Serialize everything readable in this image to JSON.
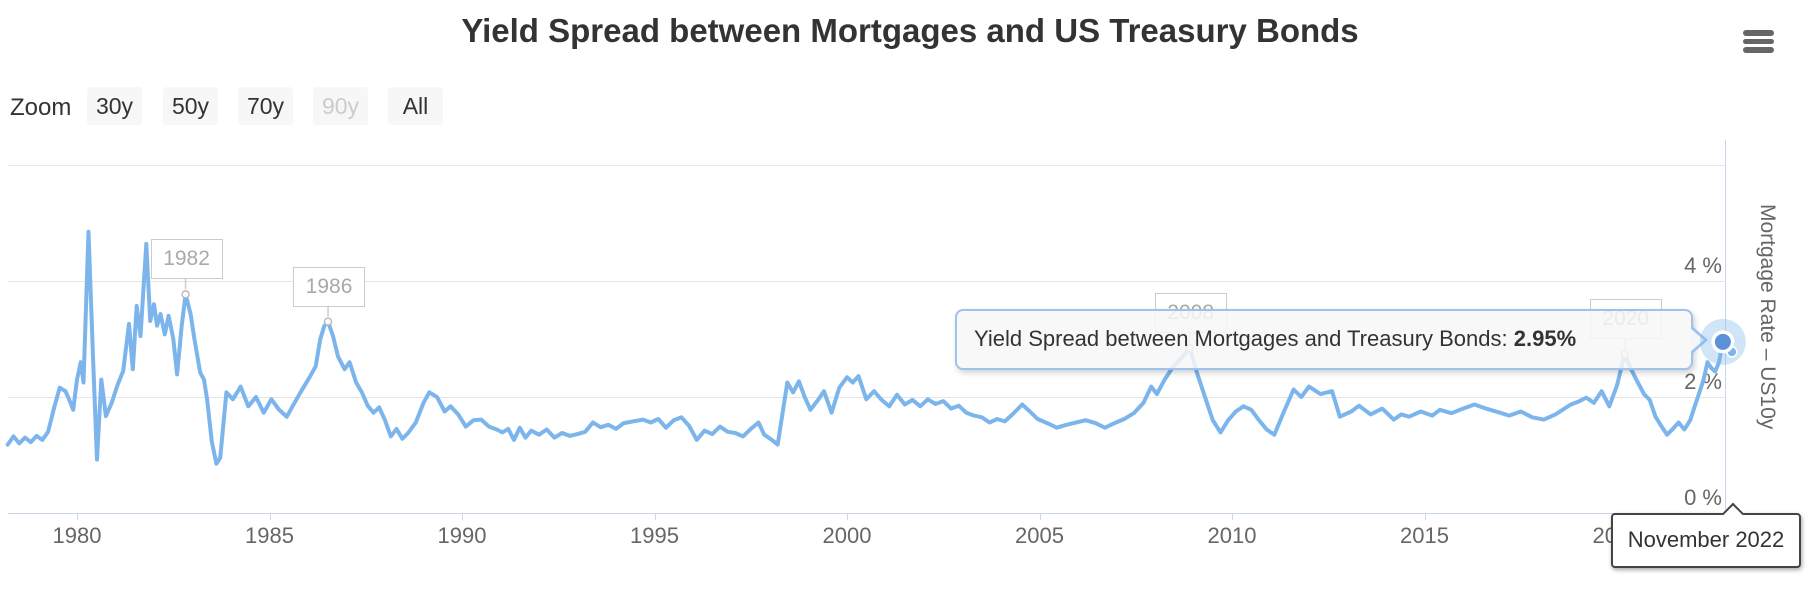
{
  "header": {
    "title": "Yield Spread between Mortgages and US Treasury Bonds"
  },
  "zoom_controls": {
    "label": "Zoom",
    "buttons": [
      {
        "label": "30y",
        "enabled": true
      },
      {
        "label": "50y",
        "enabled": true
      },
      {
        "label": "70y",
        "enabled": true
      },
      {
        "label": "90y",
        "enabled": false
      },
      {
        "label": "All",
        "enabled": true
      }
    ]
  },
  "yaxis": {
    "title": "Mortgage Rate – US10y",
    "ticks": [
      {
        "label": "4 %",
        "value": 4
      },
      {
        "label": "2 %",
        "value": 2
      },
      {
        "label": "0 %",
        "value": 0
      }
    ]
  },
  "tooltip": {
    "text": "Yield Spread between Mortgages and Treasury Bonds:",
    "value": "2.95%"
  },
  "crosshair_label": {
    "text": "November 2022"
  },
  "annotations": [
    {
      "label": "1982",
      "year": 1982.82,
      "value": 3.77
    },
    {
      "label": "1986",
      "year": 1986.52,
      "value": 3.3
    },
    {
      "label": "2008",
      "year": 2008.9,
      "value": 2.84
    },
    {
      "label": "2020",
      "year": 2020.2,
      "value": 2.74
    }
  ],
  "colors": {
    "line": "#7cb5ec",
    "marker_fill": "#5a91d8",
    "marker_halo": "rgba(124,181,236,0.35)",
    "grid": "#e6e6e6",
    "axis": "#ccd6eb",
    "flag_connector": "#cccccc"
  },
  "chart_data": {
    "type": "line",
    "series_name": "Yield Spread between Mortgages and Treasury Bonds",
    "title": "Yield Spread between Mortgages and US Treasury Bonds",
    "ylabel": "Mortgage Rate – US10y",
    "x_ticks": [
      1980,
      1985,
      1990,
      1995,
      2000,
      2005,
      2010,
      2015,
      2020
    ],
    "y_gridlines": [
      0,
      2,
      4,
      6
    ],
    "ylim": [
      0,
      6.45
    ],
    "xlim": [
      1978.2,
      2022.83
    ],
    "latest_point": {
      "date_label": "November 2022",
      "value_pct": 2.95
    },
    "points": [
      [
        1978.2,
        1.18
      ],
      [
        1978.35,
        1.32
      ],
      [
        1978.5,
        1.2
      ],
      [
        1978.65,
        1.3
      ],
      [
        1978.8,
        1.22
      ],
      [
        1978.95,
        1.33
      ],
      [
        1979.1,
        1.26
      ],
      [
        1979.25,
        1.4
      ],
      [
        1979.4,
        1.8
      ],
      [
        1979.55,
        2.16
      ],
      [
        1979.7,
        2.1
      ],
      [
        1979.8,
        1.95
      ],
      [
        1979.9,
        1.78
      ],
      [
        1980.0,
        2.3
      ],
      [
        1980.1,
        2.6
      ],
      [
        1980.17,
        2.25
      ],
      [
        1980.3,
        4.85
      ],
      [
        1980.42,
        2.6
      ],
      [
        1980.52,
        0.92
      ],
      [
        1980.63,
        2.3
      ],
      [
        1980.75,
        1.67
      ],
      [
        1980.9,
        1.9
      ],
      [
        1981.05,
        2.2
      ],
      [
        1981.2,
        2.45
      ],
      [
        1981.35,
        3.26
      ],
      [
        1981.45,
        2.48
      ],
      [
        1981.55,
        3.57
      ],
      [
        1981.65,
        3.05
      ],
      [
        1981.8,
        4.64
      ],
      [
        1981.9,
        3.31
      ],
      [
        1982.0,
        3.6
      ],
      [
        1982.08,
        3.23
      ],
      [
        1982.17,
        3.43
      ],
      [
        1982.28,
        3.08
      ],
      [
        1982.38,
        3.4
      ],
      [
        1982.5,
        3.0
      ],
      [
        1982.6,
        2.39
      ],
      [
        1982.72,
        3.23
      ],
      [
        1982.82,
        3.77
      ],
      [
        1982.95,
        3.43
      ],
      [
        1983.05,
        3.0
      ],
      [
        1983.2,
        2.42
      ],
      [
        1983.3,
        2.3
      ],
      [
        1983.38,
        1.96
      ],
      [
        1983.5,
        1.23
      ],
      [
        1983.62,
        0.85
      ],
      [
        1983.72,
        0.95
      ],
      [
        1983.88,
        2.08
      ],
      [
        1984.05,
        1.96
      ],
      [
        1984.25,
        2.18
      ],
      [
        1984.45,
        1.84
      ],
      [
        1984.65,
        2.0
      ],
      [
        1984.85,
        1.73
      ],
      [
        1985.05,
        1.96
      ],
      [
        1985.25,
        1.78
      ],
      [
        1985.45,
        1.66
      ],
      [
        1985.65,
        1.9
      ],
      [
        1985.85,
        2.13
      ],
      [
        1986.05,
        2.35
      ],
      [
        1986.2,
        2.53
      ],
      [
        1986.32,
        3.0
      ],
      [
        1986.42,
        3.22
      ],
      [
        1986.52,
        3.3
      ],
      [
        1986.65,
        3.05
      ],
      [
        1986.78,
        2.7
      ],
      [
        1986.95,
        2.48
      ],
      [
        1987.08,
        2.6
      ],
      [
        1987.25,
        2.25
      ],
      [
        1987.4,
        2.08
      ],
      [
        1987.55,
        1.85
      ],
      [
        1987.7,
        1.73
      ],
      [
        1987.85,
        1.82
      ],
      [
        1988.0,
        1.6
      ],
      [
        1988.15,
        1.32
      ],
      [
        1988.3,
        1.45
      ],
      [
        1988.45,
        1.28
      ],
      [
        1988.6,
        1.38
      ],
      [
        1988.8,
        1.56
      ],
      [
        1989.0,
        1.9
      ],
      [
        1989.15,
        2.08
      ],
      [
        1989.35,
        2.0
      ],
      [
        1989.55,
        1.75
      ],
      [
        1989.7,
        1.84
      ],
      [
        1989.9,
        1.7
      ],
      [
        1990.1,
        1.49
      ],
      [
        1990.3,
        1.6
      ],
      [
        1990.5,
        1.61
      ],
      [
        1990.7,
        1.49
      ],
      [
        1990.9,
        1.44
      ],
      [
        1991.05,
        1.39
      ],
      [
        1991.2,
        1.45
      ],
      [
        1991.35,
        1.26
      ],
      [
        1991.5,
        1.47
      ],
      [
        1991.65,
        1.3
      ],
      [
        1991.8,
        1.42
      ],
      [
        1992.0,
        1.35
      ],
      [
        1992.2,
        1.44
      ],
      [
        1992.4,
        1.3
      ],
      [
        1992.6,
        1.38
      ],
      [
        1992.8,
        1.33
      ],
      [
        1993.0,
        1.36
      ],
      [
        1993.2,
        1.4
      ],
      [
        1993.4,
        1.56
      ],
      [
        1993.6,
        1.48
      ],
      [
        1993.8,
        1.52
      ],
      [
        1994.0,
        1.45
      ],
      [
        1994.2,
        1.55
      ],
      [
        1994.45,
        1.58
      ],
      [
        1994.7,
        1.61
      ],
      [
        1994.9,
        1.56
      ],
      [
        1995.1,
        1.62
      ],
      [
        1995.3,
        1.47
      ],
      [
        1995.5,
        1.6
      ],
      [
        1995.7,
        1.65
      ],
      [
        1995.9,
        1.5
      ],
      [
        1996.1,
        1.26
      ],
      [
        1996.3,
        1.42
      ],
      [
        1996.5,
        1.36
      ],
      [
        1996.7,
        1.49
      ],
      [
        1996.9,
        1.4
      ],
      [
        1997.1,
        1.38
      ],
      [
        1997.3,
        1.32
      ],
      [
        1997.5,
        1.45
      ],
      [
        1997.7,
        1.56
      ],
      [
        1997.85,
        1.35
      ],
      [
        1998.05,
        1.26
      ],
      [
        1998.2,
        1.18
      ],
      [
        1998.45,
        2.25
      ],
      [
        1998.6,
        2.08
      ],
      [
        1998.75,
        2.27
      ],
      [
        1998.9,
        2.0
      ],
      [
        1999.05,
        1.78
      ],
      [
        1999.25,
        1.95
      ],
      [
        1999.4,
        2.1
      ],
      [
        1999.6,
        1.73
      ],
      [
        1999.8,
        2.16
      ],
      [
        2000.0,
        2.34
      ],
      [
        2000.15,
        2.25
      ],
      [
        2000.3,
        2.36
      ],
      [
        2000.5,
        1.96
      ],
      [
        2000.7,
        2.1
      ],
      [
        2000.9,
        1.95
      ],
      [
        2001.1,
        1.84
      ],
      [
        2001.3,
        2.04
      ],
      [
        2001.5,
        1.87
      ],
      [
        2001.7,
        1.95
      ],
      [
        2001.9,
        1.84
      ],
      [
        2002.1,
        1.96
      ],
      [
        2002.3,
        1.88
      ],
      [
        2002.5,
        1.93
      ],
      [
        2002.7,
        1.8
      ],
      [
        2002.9,
        1.85
      ],
      [
        2003.1,
        1.73
      ],
      [
        2003.3,
        1.68
      ],
      [
        2003.5,
        1.65
      ],
      [
        2003.7,
        1.56
      ],
      [
        2003.9,
        1.62
      ],
      [
        2004.1,
        1.58
      ],
      [
        2004.3,
        1.7
      ],
      [
        2004.55,
        1.87
      ],
      [
        2004.75,
        1.75
      ],
      [
        2004.95,
        1.62
      ],
      [
        2005.2,
        1.55
      ],
      [
        2005.45,
        1.47
      ],
      [
        2005.7,
        1.52
      ],
      [
        2005.95,
        1.56
      ],
      [
        2006.2,
        1.6
      ],
      [
        2006.45,
        1.55
      ],
      [
        2006.7,
        1.47
      ],
      [
        2006.95,
        1.55
      ],
      [
        2007.2,
        1.62
      ],
      [
        2007.45,
        1.72
      ],
      [
        2007.7,
        1.9
      ],
      [
        2007.9,
        2.18
      ],
      [
        2008.05,
        2.05
      ],
      [
        2008.25,
        2.3
      ],
      [
        2008.45,
        2.5
      ],
      [
        2008.65,
        2.65
      ],
      [
        2008.9,
        2.84
      ],
      [
        2009.1,
        2.4
      ],
      [
        2009.3,
        2.0
      ],
      [
        2009.5,
        1.6
      ],
      [
        2009.7,
        1.39
      ],
      [
        2009.9,
        1.6
      ],
      [
        2010.1,
        1.75
      ],
      [
        2010.3,
        1.84
      ],
      [
        2010.5,
        1.78
      ],
      [
        2010.7,
        1.6
      ],
      [
        2010.9,
        1.44
      ],
      [
        2011.1,
        1.35
      ],
      [
        2011.35,
        1.75
      ],
      [
        2011.6,
        2.13
      ],
      [
        2011.8,
        2.0
      ],
      [
        2012.0,
        2.18
      ],
      [
        2012.3,
        2.05
      ],
      [
        2012.6,
        2.1
      ],
      [
        2012.8,
        1.66
      ],
      [
        2013.1,
        1.75
      ],
      [
        2013.3,
        1.85
      ],
      [
        2013.6,
        1.7
      ],
      [
        2013.9,
        1.8
      ],
      [
        2014.2,
        1.61
      ],
      [
        2014.4,
        1.7
      ],
      [
        2014.6,
        1.66
      ],
      [
        2014.9,
        1.75
      ],
      [
        2015.2,
        1.68
      ],
      [
        2015.4,
        1.78
      ],
      [
        2015.7,
        1.72
      ],
      [
        2016.0,
        1.8
      ],
      [
        2016.3,
        1.87
      ],
      [
        2016.6,
        1.8
      ],
      [
        2017.0,
        1.72
      ],
      [
        2017.2,
        1.68
      ],
      [
        2017.5,
        1.75
      ],
      [
        2017.8,
        1.65
      ],
      [
        2018.1,
        1.61
      ],
      [
        2018.4,
        1.7
      ],
      [
        2018.8,
        1.87
      ],
      [
        2019.0,
        1.92
      ],
      [
        2019.2,
        1.99
      ],
      [
        2019.4,
        1.9
      ],
      [
        2019.6,
        2.1
      ],
      [
        2019.8,
        1.84
      ],
      [
        2020.0,
        2.2
      ],
      [
        2020.2,
        2.74
      ],
      [
        2020.35,
        2.5
      ],
      [
        2020.5,
        2.3
      ],
      [
        2020.7,
        2.05
      ],
      [
        2020.85,
        1.95
      ],
      [
        2021.0,
        1.66
      ],
      [
        2021.15,
        1.5
      ],
      [
        2021.3,
        1.35
      ],
      [
        2021.45,
        1.45
      ],
      [
        2021.6,
        1.56
      ],
      [
        2021.75,
        1.44
      ],
      [
        2021.9,
        1.6
      ],
      [
        2022.05,
        1.9
      ],
      [
        2022.15,
        2.1
      ],
      [
        2022.25,
        2.3
      ],
      [
        2022.35,
        2.6
      ],
      [
        2022.45,
        2.5
      ],
      [
        2022.55,
        2.44
      ],
      [
        2022.65,
        2.6
      ],
      [
        2022.75,
        2.95
      ]
    ]
  }
}
